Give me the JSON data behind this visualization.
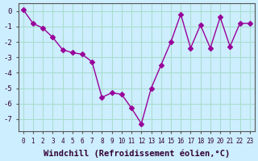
{
  "x": [
    0,
    1,
    2,
    3,
    4,
    5,
    6,
    7,
    8,
    9,
    10,
    11,
    12,
    13,
    14,
    15,
    16,
    17,
    18,
    19,
    20,
    21,
    22,
    23
  ],
  "y": [
    0.1,
    -0.8,
    -1.1,
    -1.7,
    -2.5,
    -2.7,
    -2.8,
    -3.3,
    -5.6,
    -5.3,
    -5.4,
    -6.3,
    -7.3,
    -5.0,
    -3.5,
    -2.0,
    -0.2,
    -2.4,
    -0.9,
    -2.4,
    -0.4,
    -2.3,
    -0.8,
    -0.8
  ],
  "line_color": "#990099",
  "marker": "D",
  "marker_size": 3,
  "bg_color": "#cceeff",
  "grid_color": "#aaddcc",
  "xlabel": "Windchill (Refroidissement éolien,°C)",
  "xlabel_fontsize": 7.5,
  "ylabel_ticks": [
    0,
    -1,
    -2,
    -3,
    -4,
    -5,
    -6,
    -7
  ],
  "xtick_labels": [
    "0",
    "1",
    "2",
    "3",
    "4",
    "5",
    "6",
    "7",
    "8",
    "9",
    "10",
    "11",
    "12",
    "13",
    "14",
    "15",
    "16",
    "17",
    "18",
    "19",
    "20",
    "21",
    "22",
    "23"
  ],
  "xlim": [
    -0.5,
    23.5
  ],
  "ylim": [
    -7.8,
    0.5
  ]
}
